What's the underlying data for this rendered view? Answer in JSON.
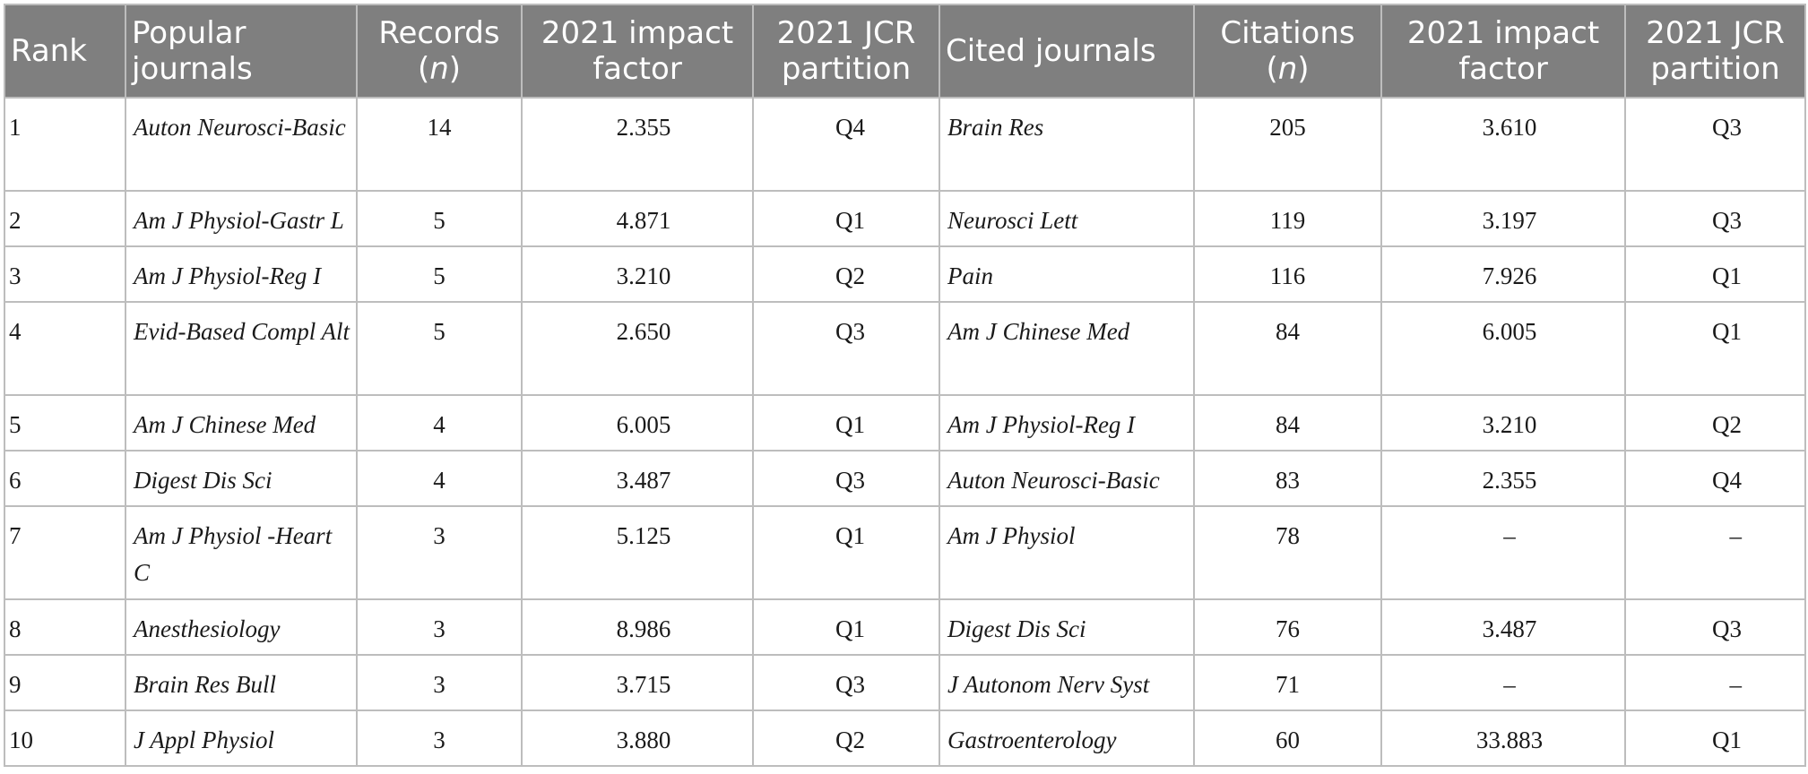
{
  "headers": {
    "rank": "Rank",
    "popular_journals": "Popular journals",
    "records_label": "Records",
    "records_unit": "n",
    "impact_factor_1": "2021 impact factor",
    "jcr_partition_1": "2021 JCR partition",
    "cited_journals": "Cited journals",
    "citations_label": "Citations",
    "citations_unit": "n",
    "impact_factor_2": "2021 impact factor",
    "jcr_partition_2": "2021 JCR partition"
  },
  "rows": [
    {
      "rank": "1",
      "popular_journal": "Auton Neurosci-Basic",
      "records": "14",
      "impact_factor": "2.355",
      "jcr_partition": "Q4",
      "cited_journal": "Brain Res",
      "citations": "205",
      "cited_impact_factor": "3.610",
      "cited_jcr_partition": "Q3"
    },
    {
      "rank": "2",
      "popular_journal": "Am J Physiol-Gastr L",
      "records": "5",
      "impact_factor": "4.871",
      "jcr_partition": "Q1",
      "cited_journal": "Neurosci Lett",
      "citations": "119",
      "cited_impact_factor": "3.197",
      "cited_jcr_partition": "Q3"
    },
    {
      "rank": "3",
      "popular_journal": "Am J Physiol-Reg I",
      "records": "5",
      "impact_factor": "3.210",
      "jcr_partition": "Q2",
      "cited_journal": "Pain",
      "citations": "116",
      "cited_impact_factor": "7.926",
      "cited_jcr_partition": "Q1"
    },
    {
      "rank": "4",
      "popular_journal": "Evid-Based Compl Alt",
      "records": "5",
      "impact_factor": "2.650",
      "jcr_partition": "Q3",
      "cited_journal": "Am J Chinese Med",
      "citations": "84",
      "cited_impact_factor": "6.005",
      "cited_jcr_partition": "Q1"
    },
    {
      "rank": "5",
      "popular_journal": "Am J Chinese Med",
      "records": "4",
      "impact_factor": "6.005",
      "jcr_partition": "Q1",
      "cited_journal": "Am J Physiol-Reg I",
      "citations": "84",
      "cited_impact_factor": "3.210",
      "cited_jcr_partition": "Q2"
    },
    {
      "rank": "6",
      "popular_journal": "Digest Dis Sci",
      "records": "4",
      "impact_factor": "3.487",
      "jcr_partition": "Q3",
      "cited_journal": "Auton Neurosci-Basic",
      "citations": "83",
      "cited_impact_factor": "2.355",
      "cited_jcr_partition": "Q4"
    },
    {
      "rank": "7",
      "popular_journal": "Am J Physiol -Heart C",
      "records": "3",
      "impact_factor": "5.125",
      "jcr_partition": "Q1",
      "cited_journal": "Am J Physiol",
      "citations": "78",
      "cited_impact_factor": "–",
      "cited_jcr_partition": "–"
    },
    {
      "rank": "8",
      "popular_journal": "Anesthesiology",
      "records": "3",
      "impact_factor": "8.986",
      "jcr_partition": "Q1",
      "cited_journal": "Digest Dis Sci",
      "citations": "76",
      "cited_impact_factor": "3.487",
      "cited_jcr_partition": "Q3"
    },
    {
      "rank": "9",
      "popular_journal": "Brain Res Bull",
      "records": "3",
      "impact_factor": "3.715",
      "jcr_partition": "Q3",
      "cited_journal": "J Autonom Nerv Syst",
      "citations": "71",
      "cited_impact_factor": "–",
      "cited_jcr_partition": "–"
    },
    {
      "rank": "10",
      "popular_journal": "J Appl Physiol",
      "records": "3",
      "impact_factor": "3.880",
      "jcr_partition": "Q2",
      "cited_journal": "Gastroenterology",
      "citations": "60",
      "cited_impact_factor": "33.883",
      "cited_jcr_partition": "Q1"
    }
  ]
}
